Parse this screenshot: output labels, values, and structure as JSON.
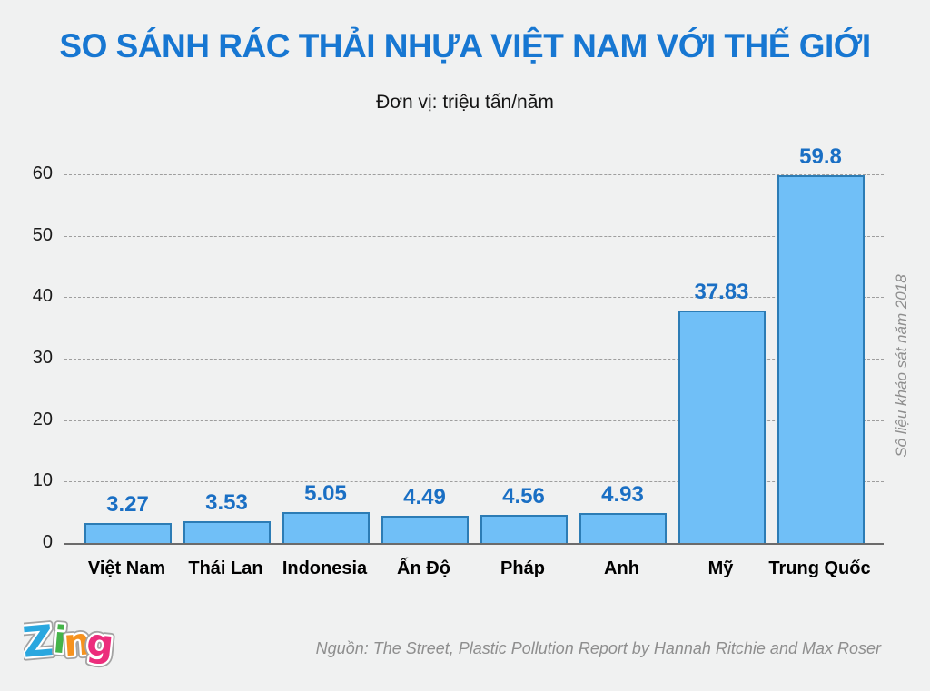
{
  "title": "SO SÁNH RÁC THẢI NHỰA VIỆT NAM VỚI THẾ GIỚI",
  "subtitle": "Đơn vị: triệu tấn/năm",
  "side_note": "Số liệu khảo sát năm 2018",
  "source": "Nguồn: The Street, Plastic Pollution Report by Hannah Ritchie and Max Roser",
  "logo": {
    "name": "Zing",
    "letters": [
      {
        "char": "Z",
        "color": "#2aa7df"
      },
      {
        "char": "i",
        "color": "#44b449"
      },
      {
        "char": "n",
        "color": "#f6921e"
      },
      {
        "char": "g",
        "color": "#ec2d7c"
      }
    ]
  },
  "chart_data": {
    "type": "bar",
    "title": "SO SÁNH RÁC THẢI NHỰA VIỆT NAM VỚI THẾ GIỚI",
    "subtitle": "Đơn vị: triệu tấn/năm",
    "categories": [
      "Việt Nam",
      "Thái Lan",
      "Indonesia",
      "Ấn Độ",
      "Pháp",
      "Anh",
      "Mỹ",
      "Trung Quốc"
    ],
    "values": [
      3.27,
      3.53,
      5.05,
      4.49,
      4.56,
      4.93,
      37.83,
      59.8
    ],
    "value_labels": [
      "3.27",
      "3.53",
      "5.05",
      "4.49",
      "4.56",
      "4.93",
      "37.83",
      "59.8"
    ],
    "xlabel": "",
    "ylabel": "",
    "ylim": [
      0,
      60
    ],
    "yticks": [
      0,
      10,
      20,
      30,
      40,
      50,
      60
    ],
    "grid": "horizontal-dashed",
    "legend": "none",
    "bar_fill": "#70bff7",
    "bar_border": "#2c7cb5",
    "value_label_color": "#1a6fc4",
    "title_color": "#1777d2"
  }
}
